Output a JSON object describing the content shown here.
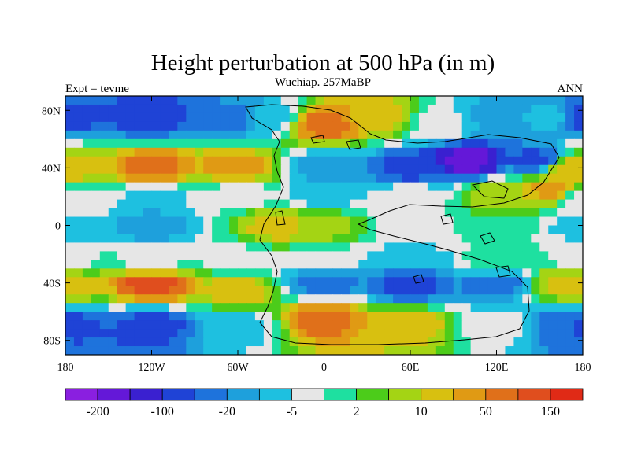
{
  "chart_data": {
    "type": "heatmap",
    "title": "Height perturbation at 500 hPa (in m)",
    "subtitle": "Wuchiap. 257MaBP",
    "left_label": "Expt = tevme",
    "right_label": "ANN",
    "x_range": [
      -180,
      180
    ],
    "y_range": [
      -90,
      90
    ],
    "x_ticks": [
      {
        "value": -180,
        "label": "180"
      },
      {
        "value": -120,
        "label": "120W"
      },
      {
        "value": -60,
        "label": "60W"
      },
      {
        "value": 0,
        "label": "0"
      },
      {
        "value": 60,
        "label": "60E"
      },
      {
        "value": 120,
        "label": "120E"
      },
      {
        "value": 180,
        "label": "180"
      }
    ],
    "y_ticks": [
      {
        "value": 80,
        "label": "80N"
      },
      {
        "value": 40,
        "label": "40N"
      },
      {
        "value": 0,
        "label": "0"
      },
      {
        "value": -40,
        "label": "40S"
      },
      {
        "value": -80,
        "label": "80S"
      }
    ],
    "colorbar": {
      "colors": [
        "#8a1fe0",
        "#6418d8",
        "#3a20d0",
        "#1f43d6",
        "#1e73dc",
        "#1ea0dc",
        "#1ec0e0",
        "#e6e6e6",
        "#1ee0a0",
        "#4ccc1a",
        "#a4d414",
        "#d8c010",
        "#e09a14",
        "#e0701a",
        "#e04e1e",
        "#e02a16"
      ],
      "labels": [
        {
          "boundary": 1,
          "text": "-200"
        },
        {
          "boundary": 3,
          "text": "-100"
        },
        {
          "boundary": 5,
          "text": "-20"
        },
        {
          "boundary": 7,
          "text": "-5"
        },
        {
          "boundary": 9,
          "text": "2"
        },
        {
          "boundary": 11,
          "text": "10"
        },
        {
          "boundary": 13,
          "text": "50"
        },
        {
          "boundary": 15,
          "text": "150"
        }
      ]
    },
    "field_levels": [
      {
        "lon": -180,
        "lat": 75,
        "level": 3
      },
      {
        "lon": -120,
        "lat": 75,
        "level": 3
      },
      {
        "lon": -60,
        "lat": 75,
        "level": 4
      },
      {
        "lon": -40,
        "lat": 75,
        "level": 6
      },
      {
        "lon": 0,
        "lat": 70,
        "level": 13
      },
      {
        "lon": 40,
        "lat": 75,
        "level": 11
      },
      {
        "lon": 80,
        "lat": 70,
        "level": 7
      },
      {
        "lon": 120,
        "lat": 75,
        "level": 5
      },
      {
        "lon": 160,
        "lat": 75,
        "level": 6
      },
      {
        "lon": -180,
        "lat": 40,
        "level": 11
      },
      {
        "lon": -120,
        "lat": 40,
        "level": 13
      },
      {
        "lon": -60,
        "lat": 40,
        "level": 12
      },
      {
        "lon": 0,
        "lat": 40,
        "level": 5
      },
      {
        "lon": 60,
        "lat": 40,
        "level": 3
      },
      {
        "lon": 100,
        "lat": 45,
        "level": 1
      },
      {
        "lon": 150,
        "lat": 45,
        "level": 3
      },
      {
        "lon": 170,
        "lat": 40,
        "level": 11
      },
      {
        "lon": -180,
        "lat": 20,
        "level": 7
      },
      {
        "lon": -120,
        "lat": 20,
        "level": 6
      },
      {
        "lon": -60,
        "lat": 22,
        "level": 7
      },
      {
        "lon": 0,
        "lat": 20,
        "level": 6
      },
      {
        "lon": 60,
        "lat": 20,
        "level": 7
      },
      {
        "lon": 120,
        "lat": 20,
        "level": 10
      },
      {
        "lon": 160,
        "lat": 25,
        "level": 12
      },
      {
        "lon": -180,
        "lat": 0,
        "level": 6
      },
      {
        "lon": -120,
        "lat": 0,
        "level": 5
      },
      {
        "lon": -30,
        "lat": 0,
        "level": 11
      },
      {
        "lon": 0,
        "lat": 0,
        "level": 10
      },
      {
        "lon": 60,
        "lat": 0,
        "level": 7
      },
      {
        "lon": 120,
        "lat": 0,
        "level": 8
      },
      {
        "lon": -180,
        "lat": -25,
        "level": 7
      },
      {
        "lon": -120,
        "lat": -25,
        "level": 7
      },
      {
        "lon": -60,
        "lat": -25,
        "level": 7
      },
      {
        "lon": 0,
        "lat": -25,
        "level": 7
      },
      {
        "lon": 60,
        "lat": -25,
        "level": 6
      },
      {
        "lon": 120,
        "lat": -25,
        "level": 8
      },
      {
        "lon": -180,
        "lat": -40,
        "level": 11
      },
      {
        "lon": -120,
        "lat": -40,
        "level": 14
      },
      {
        "lon": -60,
        "lat": -45,
        "level": 11
      },
      {
        "lon": 0,
        "lat": -40,
        "level": 4
      },
      {
        "lon": 60,
        "lat": -40,
        "level": 3
      },
      {
        "lon": 120,
        "lat": -40,
        "level": 4
      },
      {
        "lon": 170,
        "lat": -40,
        "level": 11
      },
      {
        "lon": -180,
        "lat": -70,
        "level": 3
      },
      {
        "lon": -120,
        "lat": -70,
        "level": 3
      },
      {
        "lon": -60,
        "lat": -70,
        "level": 6
      },
      {
        "lon": 0,
        "lat": -65,
        "level": 13
      },
      {
        "lon": 60,
        "lat": -70,
        "level": 11
      },
      {
        "lon": 120,
        "lat": -70,
        "level": 7
      },
      {
        "lon": 170,
        "lat": -70,
        "level": 4
      }
    ]
  }
}
